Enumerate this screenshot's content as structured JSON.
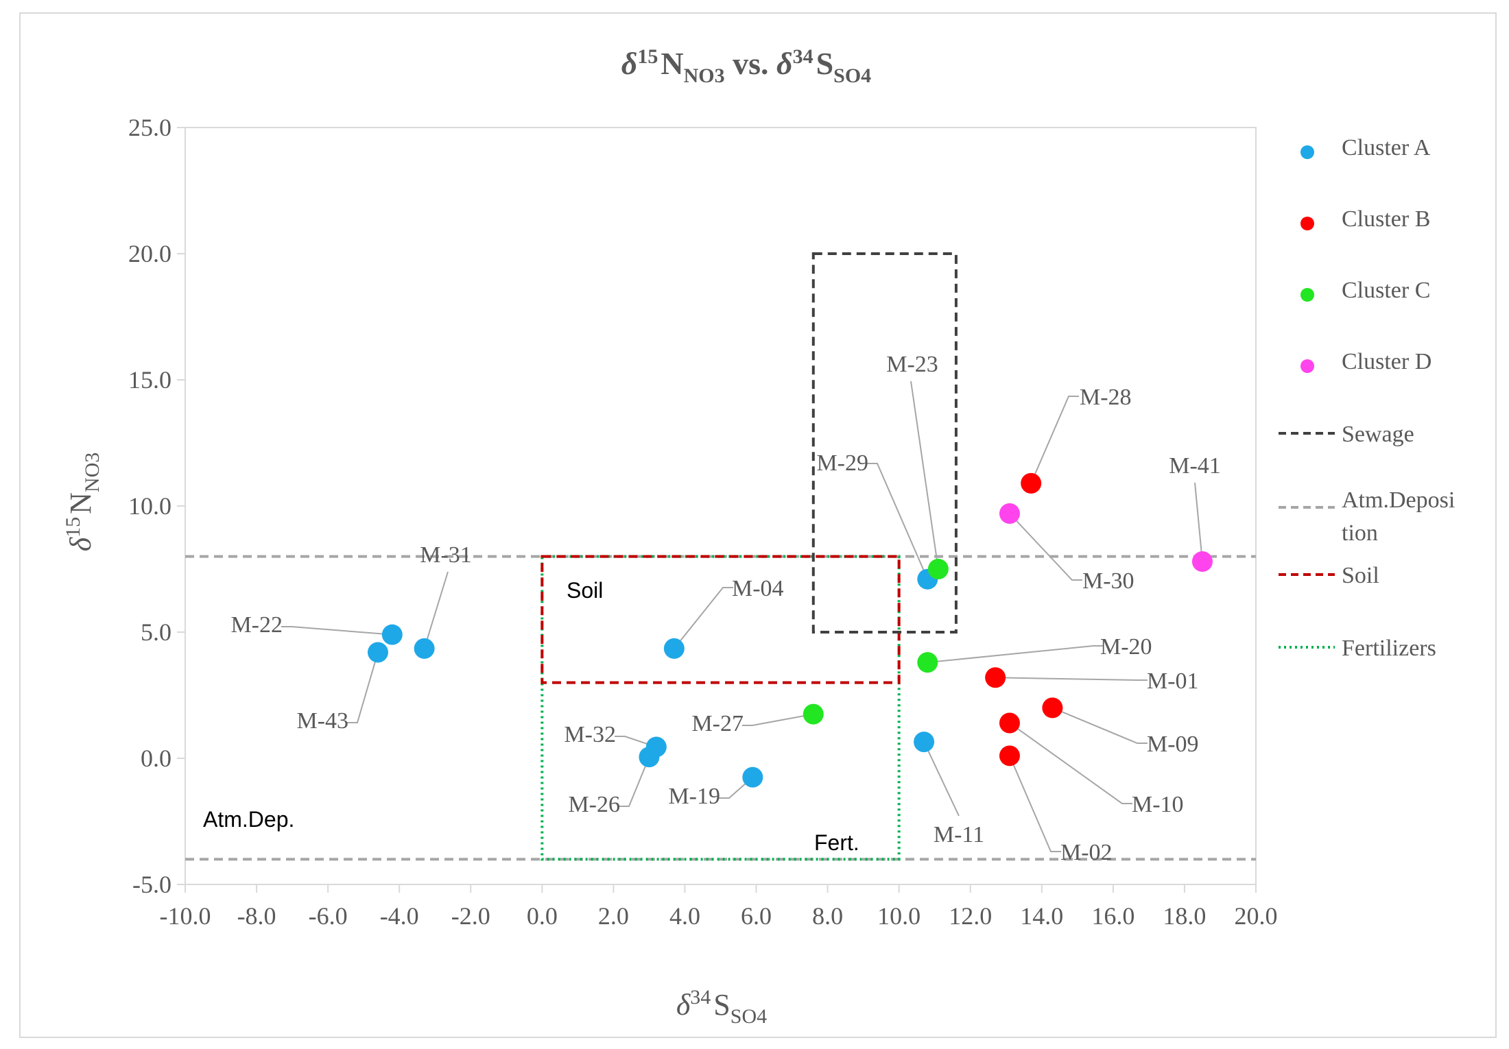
{
  "chart_data": {
    "type": "scatter",
    "title": {
      "delta": "δ",
      "sup1": "15",
      "main1": "N",
      "sub1": "NO3",
      "vs": " vs. ",
      "delta2": "δ",
      "sup2": "34",
      "main2": "S",
      "sub2": "SO4"
    },
    "xlabel": {
      "delta": "δ",
      "sup": "34",
      "main": "S",
      "sub": "SO4"
    },
    "ylabel": {
      "delta": "δ",
      "sup": "15",
      "main": "N",
      "sub": "NO3"
    },
    "xlim": [
      -10,
      20
    ],
    "ylim": [
      -5,
      25
    ],
    "xticks": [
      -10,
      -8,
      -6,
      -4,
      -2,
      0,
      2,
      4,
      6,
      8,
      10,
      12,
      14,
      16,
      18,
      20
    ],
    "yticks": [
      -5,
      0,
      5,
      10,
      15,
      20,
      25
    ],
    "xtick_labels": [
      "-10.0",
      "-8.0",
      "-6.0",
      "-4.0",
      "-2.0",
      "0.0",
      "2.0",
      "4.0",
      "6.0",
      "8.0",
      "10.0",
      "12.0",
      "14.0",
      "16.0",
      "18.0",
      "20.0"
    ],
    "ytick_labels": [
      "-5.0",
      "0.0",
      "5.0",
      "10.0",
      "15.0",
      "20.0",
      "25.0"
    ],
    "grid": false,
    "legend_position": "right",
    "series": [
      {
        "name": "Cluster A",
        "color": "#1fa8e8",
        "points": [
          {
            "label": "M-31",
            "x": -3.3,
            "y": 4.35
          },
          {
            "label": "M-22",
            "x": -4.2,
            "y": 4.9
          },
          {
            "label": "M-43",
            "x": -4.6,
            "y": 4.2
          },
          {
            "label": "M-04",
            "x": 3.7,
            "y": 4.35
          },
          {
            "label": "M-32",
            "x": 3.2,
            "y": 0.45
          },
          {
            "label": "M-26",
            "x": 3.0,
            "y": 0.05
          },
          {
            "label": "M-19",
            "x": 5.9,
            "y": -0.75
          },
          {
            "label": "M-11",
            "x": 10.7,
            "y": 0.65
          },
          {
            "label": "M-29",
            "x": 10.8,
            "y": 7.1
          }
        ]
      },
      {
        "name": "Cluster B",
        "color": "#ff0000",
        "points": [
          {
            "label": "M-28",
            "x": 13.7,
            "y": 10.9
          },
          {
            "label": "M-01",
            "x": 12.7,
            "y": 3.2
          },
          {
            "label": "M-09",
            "x": 14.3,
            "y": 2.0
          },
          {
            "label": "M-10",
            "x": 13.1,
            "y": 1.4
          },
          {
            "label": "M-02",
            "x": 13.1,
            "y": 0.1
          }
        ]
      },
      {
        "name": "Cluster C",
        "color": "#22e622",
        "points": [
          {
            "label": "M-23",
            "x": 11.1,
            "y": 7.5
          },
          {
            "label": "M-20",
            "x": 10.8,
            "y": 3.8
          },
          {
            "label": "M-27",
            "x": 7.6,
            "y": 1.75
          }
        ]
      },
      {
        "name": "Cluster D",
        "color": "#ff44ee",
        "points": [
          {
            "label": "M-30",
            "x": 13.1,
            "y": 9.7
          },
          {
            "label": "M-41",
            "x": 18.5,
            "y": 7.8
          }
        ]
      }
    ],
    "source_ranges": [
      {
        "name": "Sewage",
        "color": "#404040",
        "style": "dashed",
        "x": [
          7.6,
          11.6
        ],
        "y": [
          5.0,
          20.0
        ]
      },
      {
        "name": "Atm.Deposition",
        "color": "#a6a6a6",
        "style": "dashed",
        "x": [
          -10,
          20
        ],
        "y": [
          -4.0,
          8.0
        ]
      },
      {
        "name": "Soil",
        "color": "#c00000",
        "style": "dashed",
        "x": [
          0.0,
          10.0
        ],
        "y": [
          3.0,
          8.0
        ]
      },
      {
        "name": "Fertilizers",
        "color": "#00b050",
        "style": "dotted",
        "x": [
          0.0,
          10.0
        ],
        "y": [
          -4.0,
          8.0
        ]
      }
    ],
    "legend": [
      {
        "label": "Cluster A",
        "kind": "marker",
        "color": "#1fa8e8"
      },
      {
        "label": "Cluster B",
        "kind": "marker",
        "color": "#ff0000"
      },
      {
        "label": "Cluster C",
        "kind": "marker",
        "color": "#22e622"
      },
      {
        "label": "Cluster D",
        "kind": "marker",
        "color": "#ff44ee"
      },
      {
        "label": "Sewage",
        "kind": "line",
        "color": "#404040",
        "style": "dashed"
      },
      {
        "label": "Atm.Deposition",
        "kind": "line",
        "color": "#a6a6a6",
        "style": "dashed"
      },
      {
        "label": "Soil",
        "kind": "line",
        "color": "#c00000",
        "style": "dashed"
      },
      {
        "label": "Fertilizers",
        "kind": "line",
        "color": "#00b050",
        "style": "dotted"
      }
    ],
    "annotations": {
      "soil": "Soil",
      "fert": "Fert.",
      "atm": "Atm.Dep."
    }
  }
}
